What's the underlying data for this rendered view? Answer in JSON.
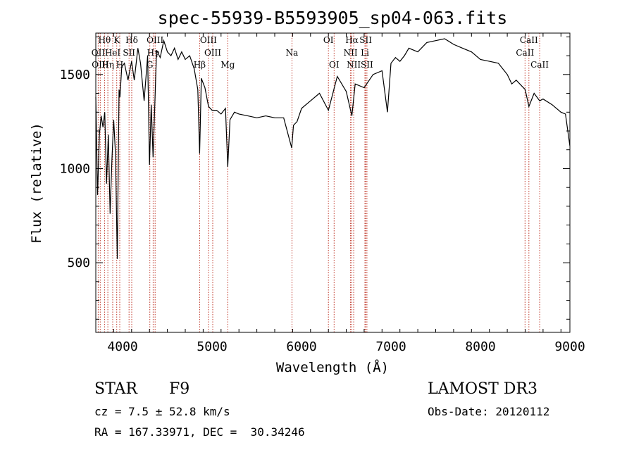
{
  "chart_data": {
    "type": "line",
    "title": "spec-55939-B5593905_sp04-063.fits",
    "xlabel": "Wavelength (Å)",
    "ylabel": "Flux (relative)",
    "xlim": [
      3700,
      9000
    ],
    "ylim": [
      130,
      1720
    ],
    "x_ticks": [
      4000,
      5000,
      6000,
      7000,
      8000,
      9000
    ],
    "y_ticks": [
      500,
      1000,
      1500
    ],
    "series": [
      {
        "name": "flux",
        "x": [
          3700,
          3720,
          3740,
          3760,
          3780,
          3800,
          3820,
          3840,
          3860,
          3880,
          3900,
          3920,
          3940,
          3960,
          3970,
          3990,
          4020,
          4060,
          4100,
          4130,
          4170,
          4200,
          4240,
          4280,
          4300,
          4320,
          4340,
          4380,
          4420,
          4460,
          4500,
          4540,
          4580,
          4620,
          4660,
          4700,
          4750,
          4800,
          4840,
          4861,
          4880,
          4920,
          4960,
          5000,
          5050,
          5100,
          5150,
          5175,
          5200,
          5250,
          5300,
          5400,
          5500,
          5600,
          5700,
          5800,
          5890,
          5910,
          5950,
          6000,
          6100,
          6200,
          6300,
          6400,
          6500,
          6563,
          6600,
          6700,
          6800,
          6900,
          6960,
          7000,
          7050,
          7100,
          7150,
          7200,
          7300,
          7400,
          7500,
          7600,
          7700,
          7800,
          7900,
          8000,
          8100,
          8200,
          8300,
          8350,
          8400,
          8500,
          8542,
          8600,
          8662,
          8700,
          8800,
          8900,
          8950,
          9000
        ],
        "y": [
          1380,
          860,
          1180,
          1280,
          1220,
          1300,
          920,
          1180,
          760,
          1050,
          1260,
          1080,
          520,
          1420,
          1380,
          1540,
          1560,
          1470,
          1570,
          1470,
          1640,
          1560,
          1360,
          1600,
          1020,
          1340,
          1060,
          1630,
          1590,
          1680,
          1620,
          1600,
          1640,
          1580,
          1620,
          1580,
          1600,
          1530,
          1420,
          1080,
          1480,
          1430,
          1330,
          1310,
          1310,
          1290,
          1320,
          1010,
          1260,
          1300,
          1290,
          1280,
          1270,
          1280,
          1270,
          1270,
          1110,
          1230,
          1250,
          1320,
          1360,
          1400,
          1310,
          1490,
          1410,
          1280,
          1450,
          1430,
          1500,
          1520,
          1300,
          1560,
          1590,
          1570,
          1600,
          1640,
          1620,
          1670,
          1680,
          1690,
          1660,
          1640,
          1620,
          1580,
          1570,
          1560,
          1500,
          1450,
          1470,
          1420,
          1330,
          1400,
          1360,
          1370,
          1340,
          1300,
          1290,
          1120
        ]
      }
    ],
    "lines": [
      {
        "name": "Hθ",
        "wl": 3798,
        "row": 0
      },
      {
        "name": "K",
        "wl": 3934,
        "row": 0
      },
      {
        "name": "Hδ",
        "wl": 4102,
        "row": 0
      },
      {
        "name": "OIII",
        "wl": 4363,
        "row": 0
      },
      {
        "name": "OIII",
        "wl": 4959,
        "row": 0
      },
      {
        "name": "OI",
        "wl": 6300,
        "row": 0
      },
      {
        "name": "Hα",
        "wl": 6563,
        "row": 0
      },
      {
        "name": "SII",
        "wl": 6717,
        "row": 0
      },
      {
        "name": "CaII",
        "wl": 8542,
        "row": 0
      },
      {
        "name": "OII",
        "wl": 3727,
        "row": 1
      },
      {
        "name": "HeI",
        "wl": 3889,
        "row": 1
      },
      {
        "name": "SII",
        "wl": 4072,
        "row": 1
      },
      {
        "name": "Hγ",
        "wl": 4341,
        "row": 1
      },
      {
        "name": "OIII",
        "wl": 5007,
        "row": 1
      },
      {
        "name": "Na",
        "wl": 5893,
        "row": 1
      },
      {
        "name": "NII",
        "wl": 6548,
        "row": 1
      },
      {
        "name": "Li",
        "wl": 6708,
        "row": 1
      },
      {
        "name": "CaII",
        "wl": 8498,
        "row": 1
      },
      {
        "name": "OIII",
        "wl": 3750,
        "row": 2
      },
      {
        "name": "Hη",
        "wl": 3835,
        "row": 2
      },
      {
        "name": "H",
        "wl": 3968,
        "row": 2
      },
      {
        "name": "G",
        "wl": 4304,
        "row": 2
      },
      {
        "name": "Hβ",
        "wl": 4861,
        "row": 2
      },
      {
        "name": "Mg",
        "wl": 5175,
        "row": 2
      },
      {
        "name": "OI",
        "wl": 6364,
        "row": 2
      },
      {
        "name": "NII",
        "wl": 6583,
        "row": 2
      },
      {
        "name": "SII",
        "wl": 6731,
        "row": 2
      },
      {
        "name": "CaII",
        "wl": 8662,
        "row": 2
      }
    ]
  },
  "info": {
    "object_class": "STAR",
    "subclass": "F9",
    "survey": "LAMOST DR3",
    "redshift": "cz = 7.5 ± 52.8 km/s",
    "obs_date": "Obs-Date: 20120112",
    "coords": "RA = 167.33971, DEC =  30.34246"
  }
}
